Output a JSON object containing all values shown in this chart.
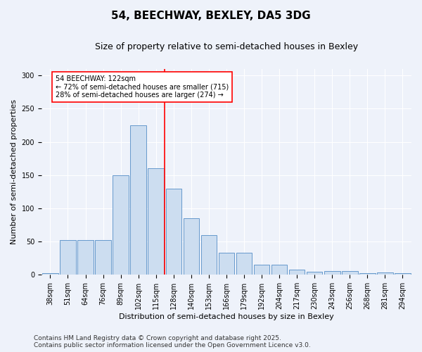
{
  "title": "54, BEECHWAY, BEXLEY, DA5 3DG",
  "subtitle": "Size of property relative to semi-detached houses in Bexley",
  "xlabel": "Distribution of semi-detached houses by size in Bexley",
  "ylabel": "Number of semi-detached properties",
  "categories": [
    "38sqm",
    "51sqm",
    "64sqm",
    "76sqm",
    "89sqm",
    "102sqm",
    "115sqm",
    "128sqm",
    "140sqm",
    "153sqm",
    "166sqm",
    "179sqm",
    "192sqm",
    "204sqm",
    "217sqm",
    "230sqm",
    "243sqm",
    "256sqm",
    "268sqm",
    "281sqm",
    "294sqm"
  ],
  "values": [
    3,
    52,
    52,
    52,
    150,
    225,
    160,
    130,
    85,
    60,
    33,
    33,
    15,
    15,
    8,
    5,
    6,
    6,
    3,
    4,
    2
  ],
  "bar_color": "#ccddf0",
  "bar_edge_color": "#6699cc",
  "ylim": [
    0,
    310
  ],
  "yticks": [
    0,
    50,
    100,
    150,
    200,
    250,
    300
  ],
  "property_label": "54 BEECHWAY: 122sqm",
  "pct_smaller": 72,
  "pct_larger": 28,
  "n_smaller": 715,
  "n_larger": 274,
  "footer": "Contains HM Land Registry data © Crown copyright and database right 2025.\nContains public sector information licensed under the Open Government Licence v3.0.",
  "background_color": "#eef2fa",
  "title_fontsize": 11,
  "subtitle_fontsize": 9,
  "axis_label_fontsize": 8,
  "tick_fontsize": 7,
  "footer_fontsize": 6.5
}
